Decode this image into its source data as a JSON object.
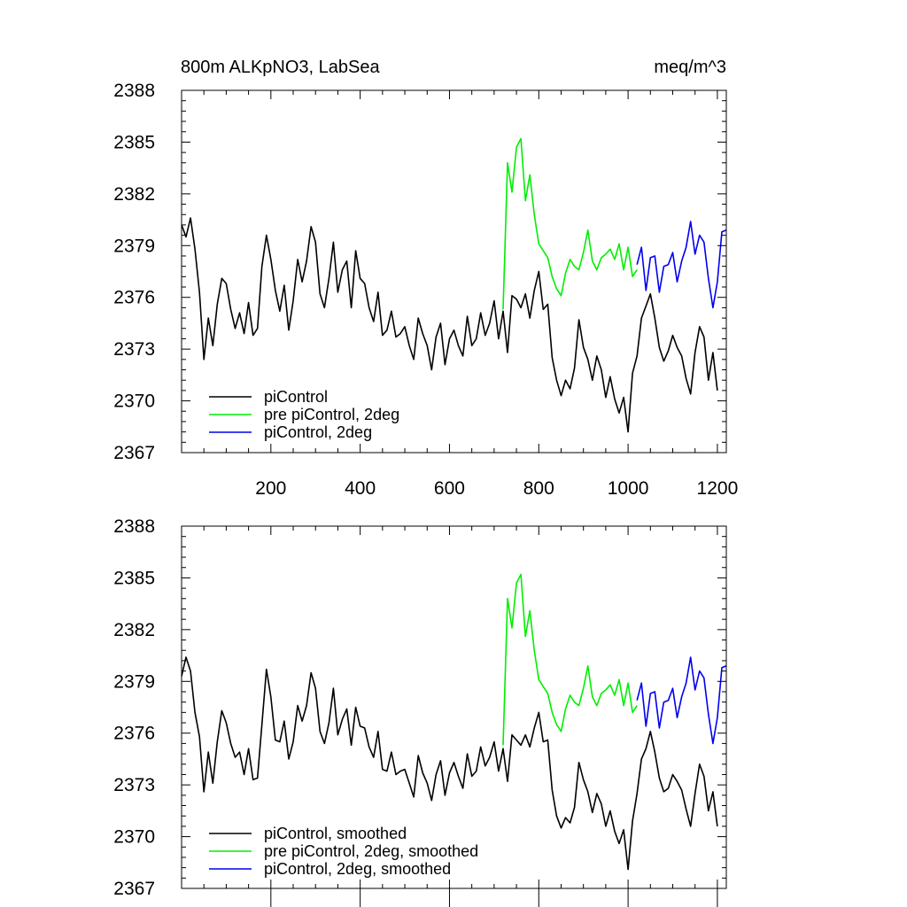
{
  "figure": {
    "title_left": "800m ALKpNO3, LabSea",
    "title_right": "meq/m^3"
  },
  "chart_data": [
    {
      "type": "line",
      "xlim": [
        0,
        1220
      ],
      "ylim": [
        2367,
        2388
      ],
      "x_ticks": [
        200,
        400,
        600,
        800,
        1000,
        1200
      ],
      "y_ticks": [
        2367,
        2370,
        2373,
        2376,
        2379,
        2382,
        2385,
        2388
      ],
      "x_tick_labels": [
        "200",
        "400",
        "600",
        "800",
        "1000",
        "1200"
      ],
      "y_tick_labels": [
        "2367",
        "2370",
        "2373",
        "2376",
        "2379",
        "2382",
        "2385",
        "2388"
      ],
      "legend": {
        "position": "bottom-left"
      },
      "series": [
        {
          "name": "piControl",
          "color": "#000000",
          "x": [
            0,
            10,
            20,
            30,
            40,
            50,
            60,
            70,
            80,
            90,
            100,
            110,
            120,
            130,
            140,
            150,
            160,
            170,
            180,
            190,
            200,
            210,
            220,
            230,
            240,
            250,
            260,
            270,
            280,
            290,
            300,
            310,
            320,
            330,
            340,
            350,
            360,
            370,
            380,
            390,
            400,
            410,
            420,
            430,
            440,
            450,
            460,
            470,
            480,
            490,
            500,
            510,
            520,
            530,
            540,
            550,
            560,
            570,
            580,
            590,
            600,
            610,
            620,
            630,
            640,
            650,
            660,
            670,
            680,
            690,
            700,
            710,
            720,
            730,
            740,
            750,
            760,
            770,
            780,
            790,
            800,
            810,
            820,
            830,
            840,
            850,
            860,
            870,
            880,
            890,
            900,
            910,
            920,
            930,
            940,
            950,
            960,
            970,
            980,
            990,
            1000,
            1010,
            1020,
            1030,
            1040,
            1050,
            1060,
            1070,
            1080,
            1090,
            1100,
            1110,
            1120,
            1130,
            1140,
            1150,
            1160,
            1170,
            1180,
            1190,
            1200
          ],
          "y": [
            2380.2,
            2379.5,
            2380.6,
            2378.8,
            2376.3,
            2372.4,
            2374.8,
            2373.2,
            2375.6,
            2377.1,
            2376.8,
            2375.3,
            2374.2,
            2375.1,
            2373.9,
            2375.7,
            2373.8,
            2374.2,
            2377.8,
            2379.6,
            2378.2,
            2376.4,
            2375.2,
            2376.7,
            2374.1,
            2375.8,
            2378.2,
            2376.9,
            2378.1,
            2380.1,
            2379.2,
            2376.2,
            2375.4,
            2377.1,
            2379.2,
            2376.3,
            2377.6,
            2378.1,
            2375.4,
            2378.7,
            2377.1,
            2376.8,
            2375.4,
            2374.6,
            2376.3,
            2373.8,
            2374.1,
            2375.2,
            2373.7,
            2373.9,
            2374.3,
            2373.2,
            2372.4,
            2374.8,
            2373.9,
            2373.2,
            2371.8,
            2373.7,
            2374.5,
            2372.1,
            2373.6,
            2374.1,
            2373.2,
            2372.6,
            2374.9,
            2373.2,
            2373.6,
            2375.1,
            2373.8,
            2374.5,
            2375.8,
            2373.6,
            2375.2,
            2372.8,
            2376.1,
            2375.9,
            2375.4,
            2376.2,
            2374.8,
            2376.4,
            2377.5,
            2375.3,
            2375.6,
            2372.5,
            2371.2,
            2370.3,
            2371.2,
            2370.7,
            2371.9,
            2374.7,
            2373.1,
            2372.4,
            2371.2,
            2372.6,
            2371.8,
            2370.2,
            2371.4,
            2370.1,
            2369.3,
            2370.2,
            2368.2,
            2371.6,
            2372.6,
            2374.8,
            2375.5,
            2376.2,
            2374.8,
            2373.1,
            2372.3,
            2372.9,
            2373.8,
            2373.1,
            2372.6,
            2371.3,
            2370.4,
            2372.8,
            2374.3,
            2373.7,
            2371.2,
            2372.8,
            2370.6
          ]
        },
        {
          "name": "pre piControl, 2deg",
          "color": "#00ee00",
          "x": [
            720,
            730,
            740,
            750,
            760,
            770,
            780,
            790,
            800,
            810,
            820,
            830,
            840,
            850,
            860,
            870,
            880,
            890,
            900,
            910,
            920,
            930,
            940,
            950,
            960,
            970,
            980,
            990,
            1000,
            1010,
            1020
          ],
          "y": [
            2375.3,
            2383.8,
            2382.1,
            2384.7,
            2385.2,
            2381.6,
            2383.1,
            2380.8,
            2379.1,
            2378.7,
            2378.3,
            2377.2,
            2376.5,
            2376.1,
            2377.4,
            2378.2,
            2377.8,
            2377.6,
            2378.6,
            2379.9,
            2378.1,
            2377.6,
            2378.3,
            2378.5,
            2378.8,
            2378.2,
            2379.1,
            2377.6,
            2378.9,
            2377.2,
            2377.6
          ]
        },
        {
          "name": "piControl, 2deg",
          "color": "#0000ee",
          "x": [
            1020,
            1030,
            1040,
            1050,
            1060,
            1070,
            1080,
            1090,
            1100,
            1110,
            1120,
            1130,
            1140,
            1150,
            1160,
            1170,
            1180,
            1190,
            1200,
            1210,
            1220
          ],
          "y": [
            2377.9,
            2378.9,
            2376.4,
            2378.3,
            2378.4,
            2376.3,
            2377.8,
            2377.9,
            2378.6,
            2376.9,
            2378.1,
            2378.9,
            2380.4,
            2378.5,
            2379.6,
            2379.2,
            2377.1,
            2375.4,
            2376.9,
            2379.8,
            2379.9
          ]
        }
      ]
    },
    {
      "type": "line",
      "xlim": [
        0,
        1220
      ],
      "ylim": [
        2367,
        2388
      ],
      "y_ticks": [
        2367,
        2370,
        2373,
        2376,
        2379,
        2382,
        2385,
        2388
      ],
      "y_tick_labels": [
        "2367",
        "2370",
        "2373",
        "2376",
        "2379",
        "2382",
        "2385",
        "2388"
      ],
      "legend": {
        "position": "bottom-left"
      },
      "series": [
        {
          "name": "piControl, smoothed",
          "color": "#000000",
          "x": [
            0,
            10,
            20,
            30,
            40,
            50,
            60,
            70,
            80,
            90,
            100,
            110,
            120,
            130,
            140,
            150,
            160,
            170,
            180,
            190,
            200,
            210,
            220,
            230,
            240,
            250,
            260,
            270,
            280,
            290,
            300,
            310,
            320,
            330,
            340,
            350,
            360,
            370,
            380,
            390,
            400,
            410,
            420,
            430,
            440,
            450,
            460,
            470,
            480,
            490,
            500,
            510,
            520,
            530,
            540,
            550,
            560,
            570,
            580,
            590,
            600,
            610,
            620,
            630,
            640,
            650,
            660,
            670,
            680,
            690,
            700,
            710,
            720,
            730,
            740,
            750,
            760,
            770,
            780,
            790,
            800,
            810,
            820,
            830,
            840,
            850,
            860,
            870,
            880,
            890,
            900,
            910,
            920,
            930,
            940,
            950,
            960,
            970,
            980,
            990,
            1000,
            1010,
            1020,
            1030,
            1040,
            1050,
            1060,
            1070,
            1080,
            1090,
            1100,
            1110,
            1120,
            1130,
            1140,
            1150,
            1160,
            1170,
            1180,
            1190,
            1200
          ],
          "y": [
            2379.3,
            2380.4,
            2379.6,
            2377.2,
            2375.8,
            2372.6,
            2374.9,
            2373.1,
            2375.5,
            2377.3,
            2376.6,
            2375.4,
            2374.6,
            2374.9,
            2373.6,
            2375.1,
            2373.3,
            2373.4,
            2376.5,
            2379.7,
            2378.1,
            2375.6,
            2375.5,
            2376.7,
            2374.5,
            2375.5,
            2377.6,
            2376.7,
            2377.6,
            2379.5,
            2378.6,
            2376.1,
            2375.4,
            2376.6,
            2378.6,
            2375.9,
            2376.8,
            2377.4,
            2375.3,
            2377.5,
            2376.4,
            2376.3,
            2375.2,
            2374.6,
            2376.1,
            2373.9,
            2373.8,
            2374.9,
            2373.6,
            2373.8,
            2373.9,
            2373.1,
            2372.3,
            2374.7,
            2373.7,
            2373.1,
            2372.1,
            2373.6,
            2374.4,
            2372.4,
            2373.7,
            2374.3,
            2373.5,
            2372.8,
            2374.8,
            2373.5,
            2373.8,
            2375.2,
            2374.1,
            2374.6,
            2375.5,
            2373.8,
            2375.1,
            2373.2,
            2375.9,
            2375.6,
            2375.3,
            2375.9,
            2375.2,
            2376.3,
            2377.2,
            2375.5,
            2375.6,
            2372.7,
            2371.2,
            2370.5,
            2371.1,
            2370.8,
            2371.7,
            2374.3,
            2373.3,
            2372.6,
            2371.4,
            2372.5,
            2371.9,
            2370.6,
            2371.5,
            2370.3,
            2369.6,
            2370.4,
            2368.1,
            2370.9,
            2372.5,
            2374.5,
            2375.1,
            2376.1,
            2374.9,
            2373.4,
            2372.6,
            2372.8,
            2373.6,
            2373.2,
            2372.7,
            2371.6,
            2370.6,
            2372.5,
            2374.2,
            2373.5,
            2371.5,
            2372.6,
            2370.6
          ]
        },
        {
          "name": "pre piControl, 2deg, smoothed",
          "color": "#00ee00",
          "x": [
            720,
            730,
            740,
            750,
            760,
            770,
            780,
            790,
            800,
            810,
            820,
            830,
            840,
            850,
            860,
            870,
            880,
            890,
            900,
            910,
            920,
            930,
            940,
            950,
            960,
            970,
            980,
            990,
            1000,
            1010,
            1020
          ],
          "y": [
            2375.3,
            2383.8,
            2382.1,
            2384.7,
            2385.2,
            2381.6,
            2383.1,
            2380.8,
            2379.1,
            2378.7,
            2378.3,
            2377.2,
            2376.5,
            2376.1,
            2377.4,
            2378.2,
            2377.8,
            2377.6,
            2378.6,
            2379.9,
            2378.1,
            2377.6,
            2378.3,
            2378.5,
            2378.8,
            2378.2,
            2379.1,
            2377.6,
            2378.9,
            2377.2,
            2377.6
          ]
        },
        {
          "name": "piControl, 2deg, smoothed",
          "color": "#0000ee",
          "x": [
            1020,
            1030,
            1040,
            1050,
            1060,
            1070,
            1080,
            1090,
            1100,
            1110,
            1120,
            1130,
            1140,
            1150,
            1160,
            1170,
            1180,
            1190,
            1200,
            1210,
            1220
          ],
          "y": [
            2377.9,
            2378.9,
            2376.4,
            2378.3,
            2378.4,
            2376.3,
            2377.8,
            2377.9,
            2378.6,
            2376.9,
            2378.1,
            2378.9,
            2380.4,
            2378.5,
            2379.6,
            2379.2,
            2377.1,
            2375.4,
            2376.9,
            2379.8,
            2379.9
          ]
        }
      ]
    }
  ]
}
